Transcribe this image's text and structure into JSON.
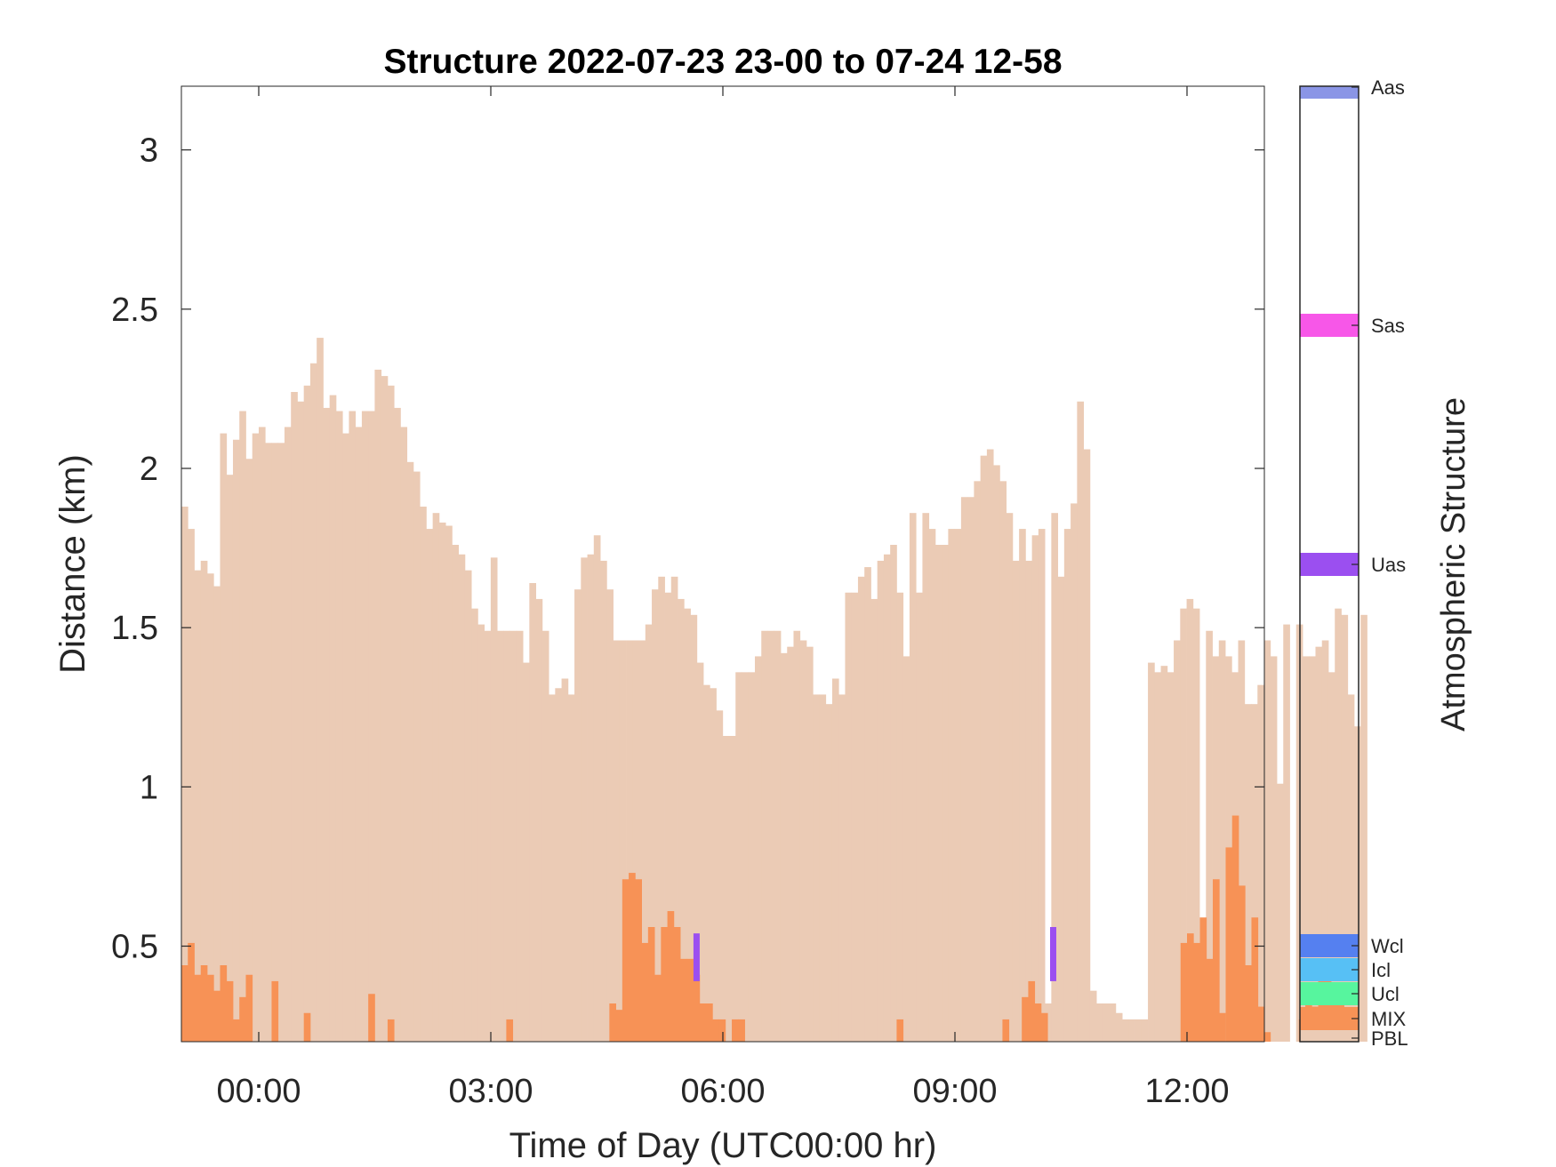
{
  "chart_data": {
    "type": "bar",
    "title": "Structure 2022-07-23 23-00 to 07-24 12-58",
    "xlabel": "Time of Day (UTC00:00 hr)",
    "ylabel": "Distance (km)",
    "xlim_hours": [
      -1.0,
      13.0
    ],
    "ylim": [
      0.2,
      3.2
    ],
    "x_ticks": [
      {
        "value": 0,
        "label": "00:00"
      },
      {
        "value": 3,
        "label": "03:00"
      },
      {
        "value": 6,
        "label": "06:00"
      },
      {
        "value": 9,
        "label": "09:00"
      },
      {
        "value": 12,
        "label": "12:00"
      }
    ],
    "y_ticks": [
      {
        "value": 0.5,
        "label": "0.5"
      },
      {
        "value": 1,
        "label": "1"
      },
      {
        "value": 1.5,
        "label": "1.5"
      },
      {
        "value": 2,
        "label": "2"
      },
      {
        "value": 2.5,
        "label": "2.5"
      },
      {
        "value": 3,
        "label": "3"
      }
    ],
    "grid": false,
    "bin_hours": 0.0833,
    "series": [
      {
        "name": "PBL",
        "color": "#EBCBB5",
        "start_hour": -1.0,
        "values": [
          1.88,
          1.81,
          1.68,
          1.71,
          1.67,
          1.63,
          2.11,
          1.98,
          2.09,
          2.18,
          2.03,
          2.11,
          2.13,
          2.08,
          2.08,
          2.08,
          2.13,
          2.24,
          2.21,
          2.26,
          2.33,
          2.41,
          2.19,
          2.23,
          2.18,
          2.11,
          2.18,
          2.13,
          2.18,
          2.18,
          2.31,
          2.29,
          2.26,
          2.19,
          2.13,
          2.02,
          1.99,
          1.88,
          1.81,
          1.86,
          1.83,
          1.82,
          1.76,
          1.73,
          1.68,
          1.56,
          1.51,
          1.49,
          1.72,
          1.49,
          1.49,
          1.49,
          1.49,
          1.39,
          1.64,
          1.59,
          1.49,
          1.29,
          1.31,
          1.34,
          1.29,
          1.62,
          1.72,
          1.73,
          1.79,
          1.71,
          1.62,
          1.46,
          1.46,
          1.46,
          1.46,
          1.46,
          1.51,
          1.62,
          1.66,
          1.61,
          1.66,
          1.59,
          1.56,
          1.54,
          1.39,
          1.32,
          1.31,
          1.24,
          1.16,
          1.16,
          1.36,
          1.36,
          1.36,
          1.41,
          1.49,
          1.49,
          1.49,
          1.42,
          1.44,
          1.49,
          1.46,
          1.44,
          1.29,
          1.29,
          1.26,
          1.34,
          1.29,
          1.61,
          1.61,
          1.66,
          1.69,
          1.59,
          1.71,
          1.73,
          1.76,
          1.61,
          1.41,
          1.86,
          1.61,
          1.86,
          1.81,
          1.76,
          1.76,
          1.81,
          1.81,
          1.91,
          1.91,
          1.96,
          2.04,
          2.06,
          2.01,
          1.96,
          1.86,
          1.71,
          1.81,
          1.71,
          1.79,
          1.81,
          0.32,
          1.86,
          1.66,
          1.81,
          1.89,
          2.21,
          2.06,
          0.36,
          0.32,
          0.32,
          0.32,
          0.29,
          0.27,
          0.27,
          0.27,
          0.27,
          1.39,
          1.36,
          1.38,
          1.36,
          1.46,
          1.56,
          1.59,
          1.56,
          0.2,
          1.49,
          1.41,
          1.46,
          1.41,
          1.36,
          1.46,
          1.26,
          1.26,
          1.32,
          1.46,
          1.41,
          1.01,
          1.51,
          0.2,
          1.51,
          1.41,
          1.41,
          1.44,
          1.46,
          1.36,
          1.56,
          1.54,
          1.29,
          1.19,
          1.54
        ]
      },
      {
        "name": "MIX",
        "color": "#F79256",
        "start_hour": -1.0,
        "values": [
          0.44,
          0.51,
          0.41,
          0.44,
          0.41,
          0.36,
          0.44,
          0.39,
          0.27,
          0.34,
          0.41,
          0,
          0,
          0,
          0.39,
          0,
          0,
          0,
          0,
          0.29,
          0,
          0,
          0,
          0,
          0,
          0,
          0,
          0,
          0,
          0.35,
          0,
          0,
          0.27,
          0,
          0,
          0,
          0,
          0,
          0,
          0,
          0,
          0,
          0,
          0,
          0,
          0,
          0,
          0,
          0,
          0,
          0,
          0,
          0,
          0,
          0,
          0,
          0,
          0,
          0,
          0,
          0,
          0,
          0,
          0,
          0,
          0,
          0,
          0,
          0,
          0,
          0,
          0,
          0,
          0,
          0,
          0,
          0,
          0,
          0,
          0,
          0,
          0,
          0,
          0,
          0,
          0,
          0,
          0,
          0,
          0,
          0,
          0,
          0,
          0,
          0,
          0,
          0,
          0,
          0,
          0,
          0,
          0,
          0,
          0,
          0,
          0,
          0,
          0,
          0,
          0,
          0,
          0.27,
          0,
          0,
          0,
          0,
          0,
          0,
          0,
          0,
          0,
          0,
          0,
          0,
          0,
          0,
          0,
          0,
          0,
          0,
          0,
          0,
          0,
          0,
          0,
          0,
          0,
          0,
          0,
          0,
          0,
          0,
          0,
          0,
          0,
          0,
          0,
          0,
          0,
          0,
          0,
          0,
          0,
          0,
          0,
          0,
          0,
          0,
          0,
          0,
          0.39,
          0.29,
          0,
          0.32,
          0.35,
          0.39,
          0.35,
          0.31,
          0.23,
          0,
          0,
          0,
          0,
          0,
          0,
          0,
          0,
          0,
          0,
          0,
          0,
          0,
          0,
          0,
          0,
          0,
          0,
          0,
          0,
          0,
          0,
          0,
          0,
          0,
          0,
          0,
          0,
          0,
          0,
          0
        ]
      },
      {
        "name": "MIX",
        "color": "#F79256",
        "start_hour": 3.2,
        "values": [
          0.27,
          0,
          0,
          0,
          0,
          0,
          0,
          0,
          0,
          0,
          0,
          0,
          0,
          0,
          0,
          0,
          0.32,
          0.3,
          0.71,
          0.73,
          0.71,
          0.51,
          0.56,
          0.41,
          0.56,
          0.61,
          0.56,
          0.46,
          0.46,
          0.41,
          0.32,
          0.32,
          0.27,
          0.27,
          0,
          0.27,
          0.27,
          0,
          0,
          0,
          0,
          0,
          0,
          0,
          0,
          0,
          0,
          0,
          0,
          0,
          0,
          0,
          0,
          0,
          0,
          0,
          0,
          0,
          0,
          0,
          0,
          0,
          0,
          0,
          0,
          0,
          0,
          0,
          0,
          0,
          0,
          0,
          0,
          0,
          0,
          0,
          0,
          0.27,
          0,
          0,
          0.34,
          0.39,
          0.32,
          0.29,
          0,
          0,
          0,
          0,
          0,
          0,
          0,
          0,
          0,
          0,
          0,
          0,
          0,
          0,
          0,
          0,
          0,
          0,
          0,
          0,
          0,
          0,
          0,
          0,
          0,
          0,
          0,
          0,
          0,
          0,
          0,
          0,
          0,
          0,
          0,
          0,
          0,
          0,
          0,
          0.27,
          0.32,
          0.31,
          0.41,
          0.39,
          0.35,
          0.36,
          0,
          0,
          0,
          0,
          0,
          0,
          0,
          0,
          0,
          0,
          0,
          0,
          0,
          0,
          0,
          0,
          0,
          0,
          0,
          0,
          0,
          0,
          0,
          0,
          0,
          0,
          0,
          0,
          0,
          0
        ]
      },
      {
        "name": "MIX",
        "color": "#F79256",
        "start_hour": 11.9167,
        "values": [
          0.51,
          0.54,
          0.51,
          0.59,
          0.46,
          0.71,
          0.2,
          0.81,
          0.91,
          0.69,
          0.44,
          0.59
        ]
      },
      {
        "name": "Uas",
        "color": "#9B4FF0",
        "segments": [
          {
            "hour": 5.66,
            "bottom": 0.39,
            "top": 0.54
          },
          {
            "hour": 10.27,
            "bottom": 0.39,
            "top": 0.56
          }
        ]
      }
    ],
    "colorbar": {
      "label": "Atmospheric Structure",
      "categories": [
        {
          "label": "PBL",
          "color": "#EBCBB5"
        },
        {
          "label": "MIX",
          "color": "#F79256"
        },
        {
          "label": "Ucl",
          "color": "#57F59E"
        },
        {
          "label": "Icl",
          "color": "#57C0F5"
        },
        {
          "label": "Wcl",
          "color": "#5580F0"
        },
        {
          "label": "Uas",
          "color": "#9B4FF0"
        },
        {
          "label": "Sas",
          "color": "#F757E8"
        },
        {
          "label": "Aas",
          "color": "#8A95E6"
        }
      ]
    }
  }
}
